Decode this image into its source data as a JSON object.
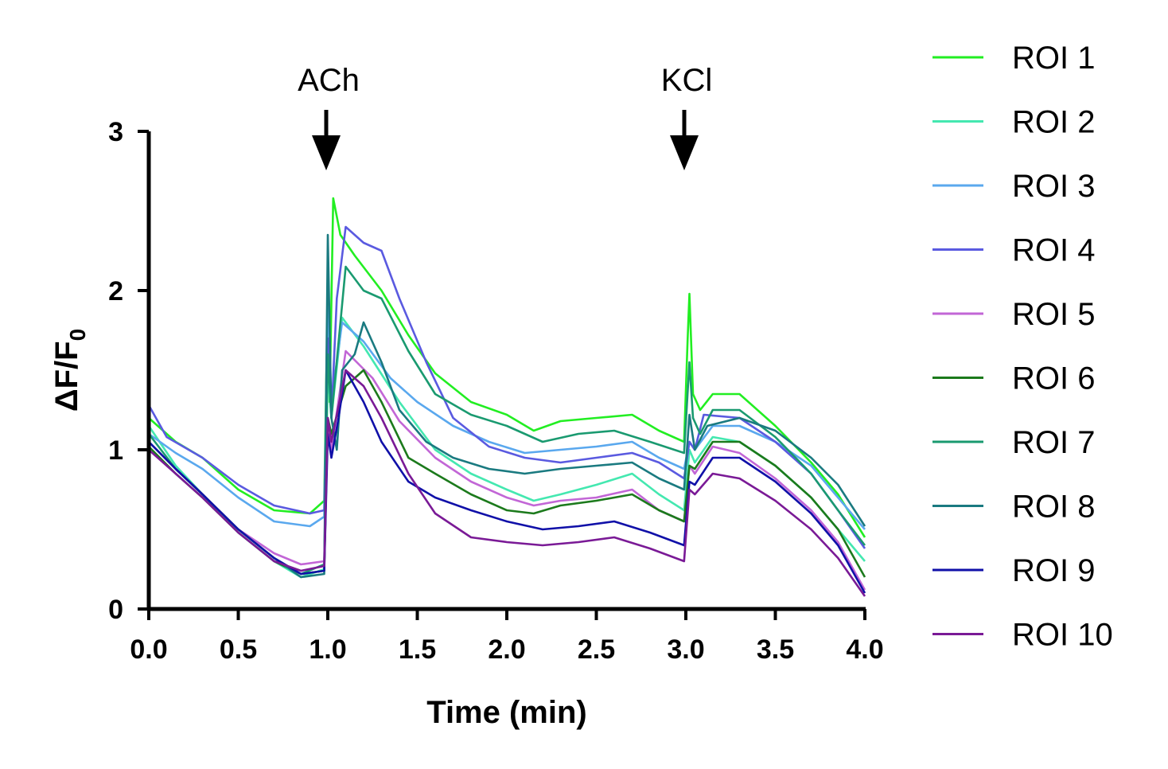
{
  "chart_data": {
    "type": "line",
    "title": "",
    "xlabel": "Time (min)",
    "ylabel": "ΔF/F",
    "ylabel_subscript": "0",
    "xlim": [
      0,
      4
    ],
    "ylim": [
      0,
      3
    ],
    "xticks": [
      "0.0",
      "0.5",
      "1.0",
      "1.5",
      "2.0",
      "2.5",
      "3.0",
      "3.5",
      "4.0"
    ],
    "yticks": [
      "0",
      "1",
      "2",
      "3"
    ],
    "grid": false,
    "legend_position": "right",
    "annotations": [
      {
        "label": "ACh",
        "x": 1.0
      },
      {
        "label": "KCl",
        "x": 3.0
      }
    ],
    "series": [
      {
        "name": "ROI 1",
        "color": "#22ee22",
        "points": [
          [
            0,
            1.2
          ],
          [
            0.15,
            1.05
          ],
          [
            0.3,
            0.95
          ],
          [
            0.5,
            0.75
          ],
          [
            0.7,
            0.62
          ],
          [
            0.9,
            0.6
          ],
          [
            0.98,
            0.68
          ],
          [
            1.0,
            2.0
          ],
          [
            1.01,
            1.3
          ],
          [
            1.03,
            2.58
          ],
          [
            1.07,
            2.35
          ],
          [
            1.15,
            2.22
          ],
          [
            1.3,
            2.0
          ],
          [
            1.45,
            1.72
          ],
          [
            1.6,
            1.48
          ],
          [
            1.8,
            1.3
          ],
          [
            2.0,
            1.22
          ],
          [
            2.15,
            1.12
          ],
          [
            2.3,
            1.18
          ],
          [
            2.5,
            1.2
          ],
          [
            2.7,
            1.22
          ],
          [
            2.85,
            1.12
          ],
          [
            2.99,
            1.05
          ],
          [
            3.01,
            1.7
          ],
          [
            3.02,
            1.98
          ],
          [
            3.04,
            1.35
          ],
          [
            3.08,
            1.25
          ],
          [
            3.15,
            1.35
          ],
          [
            3.3,
            1.35
          ],
          [
            3.5,
            1.15
          ],
          [
            3.7,
            0.92
          ],
          [
            3.85,
            0.72
          ],
          [
            4.0,
            0.45
          ]
        ]
      },
      {
        "name": "ROI 2",
        "color": "#44e8b0",
        "points": [
          [
            0,
            1.15
          ],
          [
            0.15,
            0.9
          ],
          [
            0.3,
            0.72
          ],
          [
            0.5,
            0.48
          ],
          [
            0.7,
            0.3
          ],
          [
            0.85,
            0.2
          ],
          [
            0.98,
            0.25
          ],
          [
            1.0,
            1.5
          ],
          [
            1.02,
            1.2
          ],
          [
            1.08,
            1.83
          ],
          [
            1.2,
            1.65
          ],
          [
            1.4,
            1.3
          ],
          [
            1.6,
            1.0
          ],
          [
            1.8,
            0.85
          ],
          [
            2.0,
            0.75
          ],
          [
            2.15,
            0.68
          ],
          [
            2.3,
            0.72
          ],
          [
            2.5,
            0.78
          ],
          [
            2.7,
            0.85
          ],
          [
            2.85,
            0.72
          ],
          [
            2.99,
            0.62
          ],
          [
            3.02,
            1.0
          ],
          [
            3.05,
            0.92
          ],
          [
            3.15,
            1.08
          ],
          [
            3.3,
            1.05
          ],
          [
            3.5,
            0.9
          ],
          [
            3.7,
            0.7
          ],
          [
            3.85,
            0.5
          ],
          [
            4.0,
            0.3
          ]
        ]
      },
      {
        "name": "ROI 3",
        "color": "#5aa8ee",
        "points": [
          [
            0,
            1.1
          ],
          [
            0.15,
            0.98
          ],
          [
            0.3,
            0.88
          ],
          [
            0.5,
            0.7
          ],
          [
            0.7,
            0.55
          ],
          [
            0.9,
            0.52
          ],
          [
            0.98,
            0.58
          ],
          [
            1.0,
            1.9
          ],
          [
            1.02,
            1.3
          ],
          [
            1.08,
            1.8
          ],
          [
            1.2,
            1.68
          ],
          [
            1.35,
            1.45
          ],
          [
            1.5,
            1.3
          ],
          [
            1.7,
            1.15
          ],
          [
            1.9,
            1.05
          ],
          [
            2.1,
            0.98
          ],
          [
            2.3,
            1.0
          ],
          [
            2.5,
            1.02
          ],
          [
            2.7,
            1.05
          ],
          [
            2.85,
            0.95
          ],
          [
            2.99,
            0.88
          ],
          [
            3.02,
            1.05
          ],
          [
            3.05,
            1.0
          ],
          [
            3.15,
            1.15
          ],
          [
            3.3,
            1.15
          ],
          [
            3.5,
            1.05
          ],
          [
            3.7,
            0.9
          ],
          [
            3.85,
            0.7
          ],
          [
            4.0,
            0.5
          ]
        ]
      },
      {
        "name": "ROI 4",
        "color": "#5a5ae0",
        "points": [
          [
            0,
            1.28
          ],
          [
            0.1,
            1.08
          ],
          [
            0.3,
            0.95
          ],
          [
            0.5,
            0.78
          ],
          [
            0.7,
            0.65
          ],
          [
            0.9,
            0.6
          ],
          [
            0.98,
            0.62
          ],
          [
            1.0,
            1.7
          ],
          [
            1.02,
            1.2
          ],
          [
            1.05,
            1.95
          ],
          [
            1.1,
            2.4
          ],
          [
            1.2,
            2.3
          ],
          [
            1.3,
            2.25
          ],
          [
            1.4,
            1.95
          ],
          [
            1.55,
            1.55
          ],
          [
            1.7,
            1.2
          ],
          [
            1.9,
            1.02
          ],
          [
            2.1,
            0.95
          ],
          [
            2.3,
            0.92
          ],
          [
            2.5,
            0.95
          ],
          [
            2.7,
            0.98
          ],
          [
            2.85,
            0.92
          ],
          [
            2.99,
            0.82
          ],
          [
            3.02,
            1.05
          ],
          [
            3.05,
            1.0
          ],
          [
            3.1,
            1.22
          ],
          [
            3.3,
            1.2
          ],
          [
            3.5,
            1.05
          ],
          [
            3.7,
            0.85
          ],
          [
            3.85,
            0.62
          ],
          [
            4.0,
            0.38
          ]
        ]
      },
      {
        "name": "ROI 5",
        "color": "#c266d6",
        "points": [
          [
            0,
            1.05
          ],
          [
            0.15,
            0.88
          ],
          [
            0.3,
            0.72
          ],
          [
            0.5,
            0.5
          ],
          [
            0.7,
            0.35
          ],
          [
            0.85,
            0.28
          ],
          [
            0.98,
            0.3
          ],
          [
            1.0,
            1.2
          ],
          [
            1.02,
            1.0
          ],
          [
            1.1,
            1.62
          ],
          [
            1.25,
            1.45
          ],
          [
            1.4,
            1.18
          ],
          [
            1.6,
            0.95
          ],
          [
            1.8,
            0.8
          ],
          [
            2.0,
            0.7
          ],
          [
            2.15,
            0.65
          ],
          [
            2.3,
            0.68
          ],
          [
            2.5,
            0.7
          ],
          [
            2.7,
            0.75
          ],
          [
            2.85,
            0.62
          ],
          [
            2.99,
            0.55
          ],
          [
            3.02,
            0.9
          ],
          [
            3.05,
            0.85
          ],
          [
            3.15,
            1.02
          ],
          [
            3.3,
            0.98
          ],
          [
            3.5,
            0.82
          ],
          [
            3.7,
            0.62
          ],
          [
            3.85,
            0.42
          ],
          [
            4.0,
            0.12
          ]
        ]
      },
      {
        "name": "ROI 6",
        "color": "#1c7a1c",
        "points": [
          [
            0,
            1.02
          ],
          [
            0.15,
            0.85
          ],
          [
            0.3,
            0.7
          ],
          [
            0.5,
            0.48
          ],
          [
            0.7,
            0.3
          ],
          [
            0.85,
            0.22
          ],
          [
            0.98,
            0.24
          ],
          [
            1.0,
            1.2
          ],
          [
            1.02,
            1.1
          ],
          [
            1.1,
            1.4
          ],
          [
            1.2,
            1.5
          ],
          [
            1.3,
            1.3
          ],
          [
            1.45,
            0.95
          ],
          [
            1.6,
            0.85
          ],
          [
            1.8,
            0.72
          ],
          [
            2.0,
            0.62
          ],
          [
            2.15,
            0.6
          ],
          [
            2.3,
            0.65
          ],
          [
            2.5,
            0.68
          ],
          [
            2.7,
            0.72
          ],
          [
            2.85,
            0.62
          ],
          [
            2.99,
            0.55
          ],
          [
            3.02,
            0.9
          ],
          [
            3.05,
            0.88
          ],
          [
            3.15,
            1.05
          ],
          [
            3.3,
            1.05
          ],
          [
            3.5,
            0.9
          ],
          [
            3.7,
            0.7
          ],
          [
            3.85,
            0.5
          ],
          [
            4.0,
            0.2
          ]
        ]
      },
      {
        "name": "ROI 7",
        "color": "#1a9a70",
        "points": [
          [
            0,
            1.1
          ],
          [
            0.15,
            0.88
          ],
          [
            0.3,
            0.72
          ],
          [
            0.5,
            0.5
          ],
          [
            0.7,
            0.32
          ],
          [
            0.85,
            0.22
          ],
          [
            0.98,
            0.28
          ],
          [
            1.0,
            1.6
          ],
          [
            1.02,
            1.2
          ],
          [
            1.1,
            2.15
          ],
          [
            1.2,
            2.0
          ],
          [
            1.3,
            1.95
          ],
          [
            1.45,
            1.62
          ],
          [
            1.6,
            1.35
          ],
          [
            1.8,
            1.22
          ],
          [
            2.0,
            1.15
          ],
          [
            2.2,
            1.05
          ],
          [
            2.4,
            1.1
          ],
          [
            2.6,
            1.12
          ],
          [
            2.8,
            1.05
          ],
          [
            2.99,
            0.98
          ],
          [
            3.02,
            1.55
          ],
          [
            3.04,
            1.2
          ],
          [
            3.08,
            1.1
          ],
          [
            3.15,
            1.25
          ],
          [
            3.3,
            1.25
          ],
          [
            3.5,
            1.08
          ],
          [
            3.7,
            0.85
          ],
          [
            3.85,
            0.62
          ],
          [
            4.0,
            0.4
          ]
        ]
      },
      {
        "name": "ROI 8",
        "color": "#1a7a80",
        "points": [
          [
            0,
            1.05
          ],
          [
            0.15,
            0.88
          ],
          [
            0.3,
            0.72
          ],
          [
            0.5,
            0.5
          ],
          [
            0.7,
            0.32
          ],
          [
            0.85,
            0.2
          ],
          [
            0.98,
            0.22
          ],
          [
            1.0,
            2.35
          ],
          [
            1.02,
            1.2
          ],
          [
            1.05,
            1.0
          ],
          [
            1.08,
            1.5
          ],
          [
            1.15,
            1.6
          ],
          [
            1.2,
            1.8
          ],
          [
            1.3,
            1.55
          ],
          [
            1.4,
            1.25
          ],
          [
            1.55,
            1.05
          ],
          [
            1.7,
            0.95
          ],
          [
            1.9,
            0.88
          ],
          [
            2.1,
            0.85
          ],
          [
            2.3,
            0.88
          ],
          [
            2.5,
            0.9
          ],
          [
            2.7,
            0.92
          ],
          [
            2.85,
            0.82
          ],
          [
            2.99,
            0.75
          ],
          [
            3.02,
            1.22
          ],
          [
            3.05,
            1.0
          ],
          [
            3.12,
            1.15
          ],
          [
            3.3,
            1.2
          ],
          [
            3.5,
            1.12
          ],
          [
            3.7,
            0.95
          ],
          [
            3.85,
            0.78
          ],
          [
            4.0,
            0.52
          ]
        ]
      },
      {
        "name": "ROI 9",
        "color": "#1010a8",
        "points": [
          [
            0,
            1.05
          ],
          [
            0.15,
            0.88
          ],
          [
            0.3,
            0.72
          ],
          [
            0.5,
            0.5
          ],
          [
            0.7,
            0.32
          ],
          [
            0.85,
            0.22
          ],
          [
            0.98,
            0.24
          ],
          [
            1.0,
            1.1
          ],
          [
            1.02,
            0.95
          ],
          [
            1.06,
            1.2
          ],
          [
            1.1,
            1.5
          ],
          [
            1.2,
            1.3
          ],
          [
            1.3,
            1.05
          ],
          [
            1.45,
            0.8
          ],
          [
            1.6,
            0.7
          ],
          [
            1.8,
            0.62
          ],
          [
            2.0,
            0.55
          ],
          [
            2.2,
            0.5
          ],
          [
            2.4,
            0.52
          ],
          [
            2.6,
            0.55
          ],
          [
            2.8,
            0.48
          ],
          [
            2.99,
            0.4
          ],
          [
            3.02,
            0.8
          ],
          [
            3.05,
            0.78
          ],
          [
            3.15,
            0.95
          ],
          [
            3.3,
            0.95
          ],
          [
            3.5,
            0.8
          ],
          [
            3.7,
            0.6
          ],
          [
            3.85,
            0.4
          ],
          [
            4.0,
            0.1
          ]
        ]
      },
      {
        "name": "ROI 10",
        "color": "#7a1a96",
        "points": [
          [
            0,
            1.0
          ],
          [
            0.15,
            0.85
          ],
          [
            0.3,
            0.7
          ],
          [
            0.5,
            0.48
          ],
          [
            0.7,
            0.3
          ],
          [
            0.85,
            0.24
          ],
          [
            0.98,
            0.27
          ],
          [
            1.0,
            1.2
          ],
          [
            1.02,
            1.05
          ],
          [
            1.1,
            1.5
          ],
          [
            1.2,
            1.4
          ],
          [
            1.3,
            1.2
          ],
          [
            1.45,
            0.85
          ],
          [
            1.6,
            0.6
          ],
          [
            1.8,
            0.45
          ],
          [
            2.0,
            0.42
          ],
          [
            2.2,
            0.4
          ],
          [
            2.4,
            0.42
          ],
          [
            2.6,
            0.45
          ],
          [
            2.8,
            0.38
          ],
          [
            2.99,
            0.3
          ],
          [
            3.02,
            0.75
          ],
          [
            3.05,
            0.72
          ],
          [
            3.15,
            0.85
          ],
          [
            3.3,
            0.82
          ],
          [
            3.5,
            0.68
          ],
          [
            3.7,
            0.5
          ],
          [
            3.85,
            0.32
          ],
          [
            4.0,
            0.08
          ]
        ]
      }
    ]
  }
}
